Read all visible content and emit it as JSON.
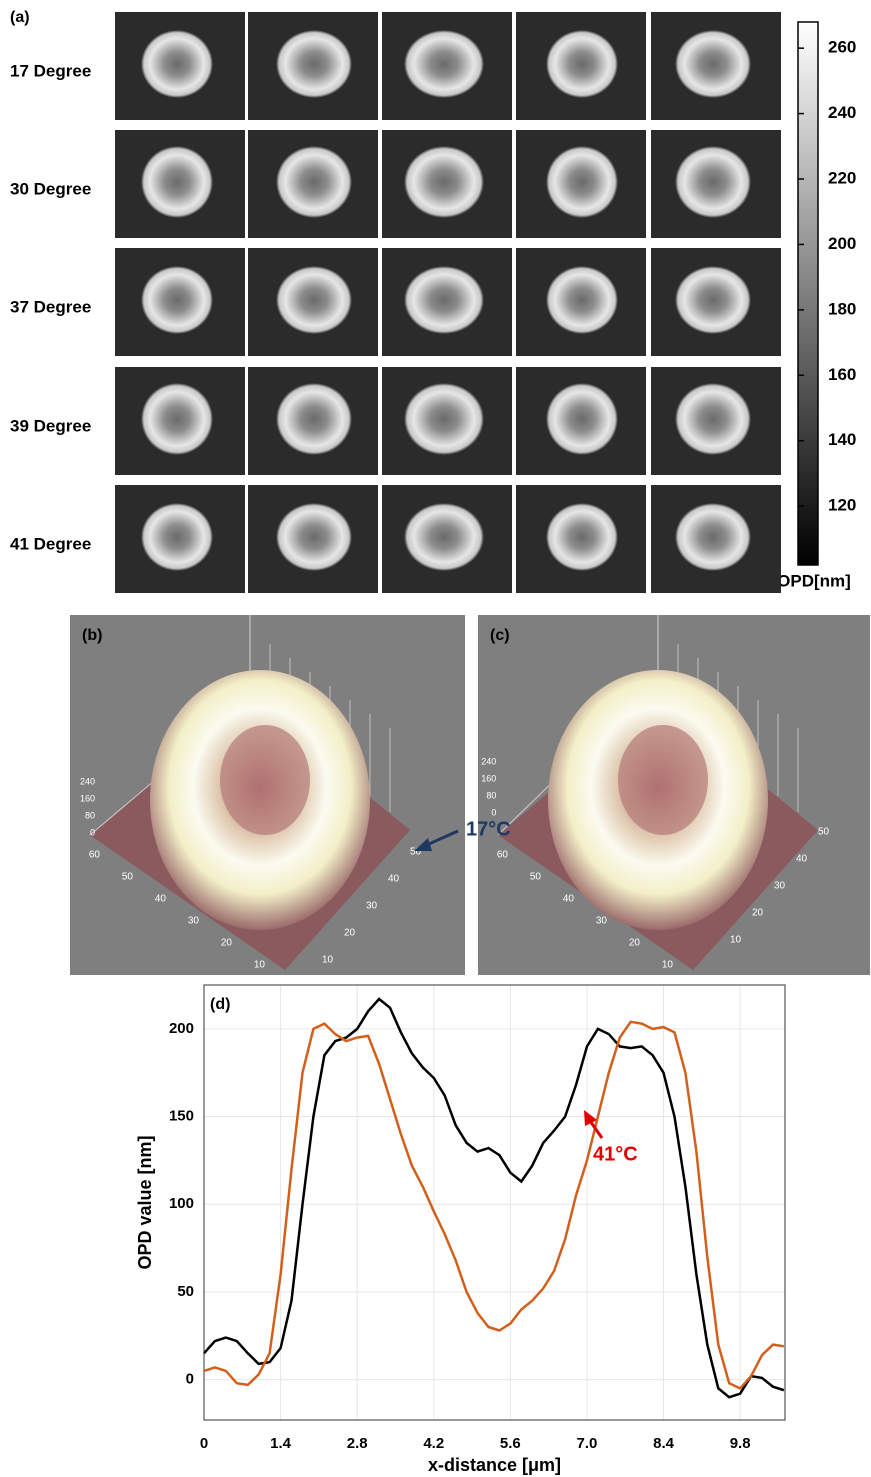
{
  "panel_a": {
    "label": "(a)",
    "rows": [
      "17 Degree",
      "30 Degree",
      "37 Degree",
      "39 Degree",
      "41 Degree"
    ],
    "colorbar": {
      "label": "OPD[nm]",
      "lim": [
        102,
        268
      ],
      "ticks": [
        120,
        140,
        160,
        180,
        200,
        220,
        240,
        260
      ]
    }
  },
  "panel_b": {
    "label": "(b)",
    "z_ticks": [
      240,
      160,
      80,
      0
    ],
    "x_ticks": [
      60,
      50,
      40,
      30,
      20,
      10
    ],
    "y_ticks": [
      50,
      40,
      30,
      20,
      10
    ]
  },
  "panel_c": {
    "label": "(c)",
    "z_ticks": [
      240,
      160,
      80,
      0
    ],
    "x_ticks": [
      60,
      50,
      40,
      30,
      20,
      10
    ],
    "y_ticks": [
      50,
      40,
      30,
      20,
      10
    ]
  },
  "chart_data": {
    "type": "line",
    "panel_label": "(d)",
    "x_label": "x-distance [μm]",
    "y_label": "OPD value [nm]",
    "x": [
      0,
      0.2,
      0.4,
      0.6,
      0.8,
      1.0,
      1.2,
      1.4,
      1.6,
      1.8,
      2.0,
      2.2,
      2.4,
      2.6,
      2.8,
      3.0,
      3.2,
      3.4,
      3.6,
      3.8,
      4.0,
      4.2,
      4.4,
      4.6,
      4.8,
      5.0,
      5.2,
      5.4,
      5.6,
      5.8,
      6.0,
      6.2,
      6.4,
      6.6,
      6.8,
      7.0,
      7.2,
      7.4,
      7.6,
      7.8,
      8.0,
      8.2,
      8.4,
      8.6,
      8.8,
      9.0,
      9.2,
      9.4,
      9.6,
      9.8,
      10.0,
      10.2,
      10.4,
      10.6
    ],
    "series": [
      {
        "name": "17°C",
        "color": "#000000",
        "label_color": "#1f3864",
        "values": [
          15,
          22,
          24,
          22,
          15,
          9,
          10,
          18,
          45,
          100,
          150,
          185,
          193,
          195,
          200,
          210,
          217,
          212,
          198,
          186,
          178,
          172,
          162,
          145,
          135,
          130,
          132,
          128,
          118,
          113,
          122,
          135,
          142,
          150,
          168,
          190,
          200,
          197,
          190,
          189,
          190,
          185,
          175,
          150,
          110,
          60,
          20,
          -5,
          -10,
          -8,
          2,
          1,
          -4,
          -6
        ]
      },
      {
        "name": "41°C",
        "color": "#d2601c",
        "label_color": "#e00000",
        "values": [
          5,
          7,
          5,
          -2,
          -3,
          3,
          15,
          60,
          120,
          175,
          200,
          203,
          197,
          193,
          195,
          196,
          180,
          160,
          140,
          122,
          110,
          96,
          83,
          68,
          50,
          38,
          30,
          28,
          32,
          40,
          45,
          52,
          62,
          80,
          105,
          125,
          150,
          175,
          195,
          204,
          203,
          200,
          201,
          198,
          175,
          130,
          70,
          20,
          -2,
          -5,
          2,
          14,
          20,
          19
        ]
      }
    ],
    "xlim": [
      0,
      10.62
    ],
    "ylim": [
      -23,
      225
    ],
    "xticks": [
      0,
      1.4,
      2.8,
      4.2,
      5.6,
      {
        "value": 7,
        "label": "7.0"
      },
      8.4,
      9.8
    ],
    "yticks": [
      0,
      50,
      100,
      150,
      200
    ],
    "grid": true
  }
}
